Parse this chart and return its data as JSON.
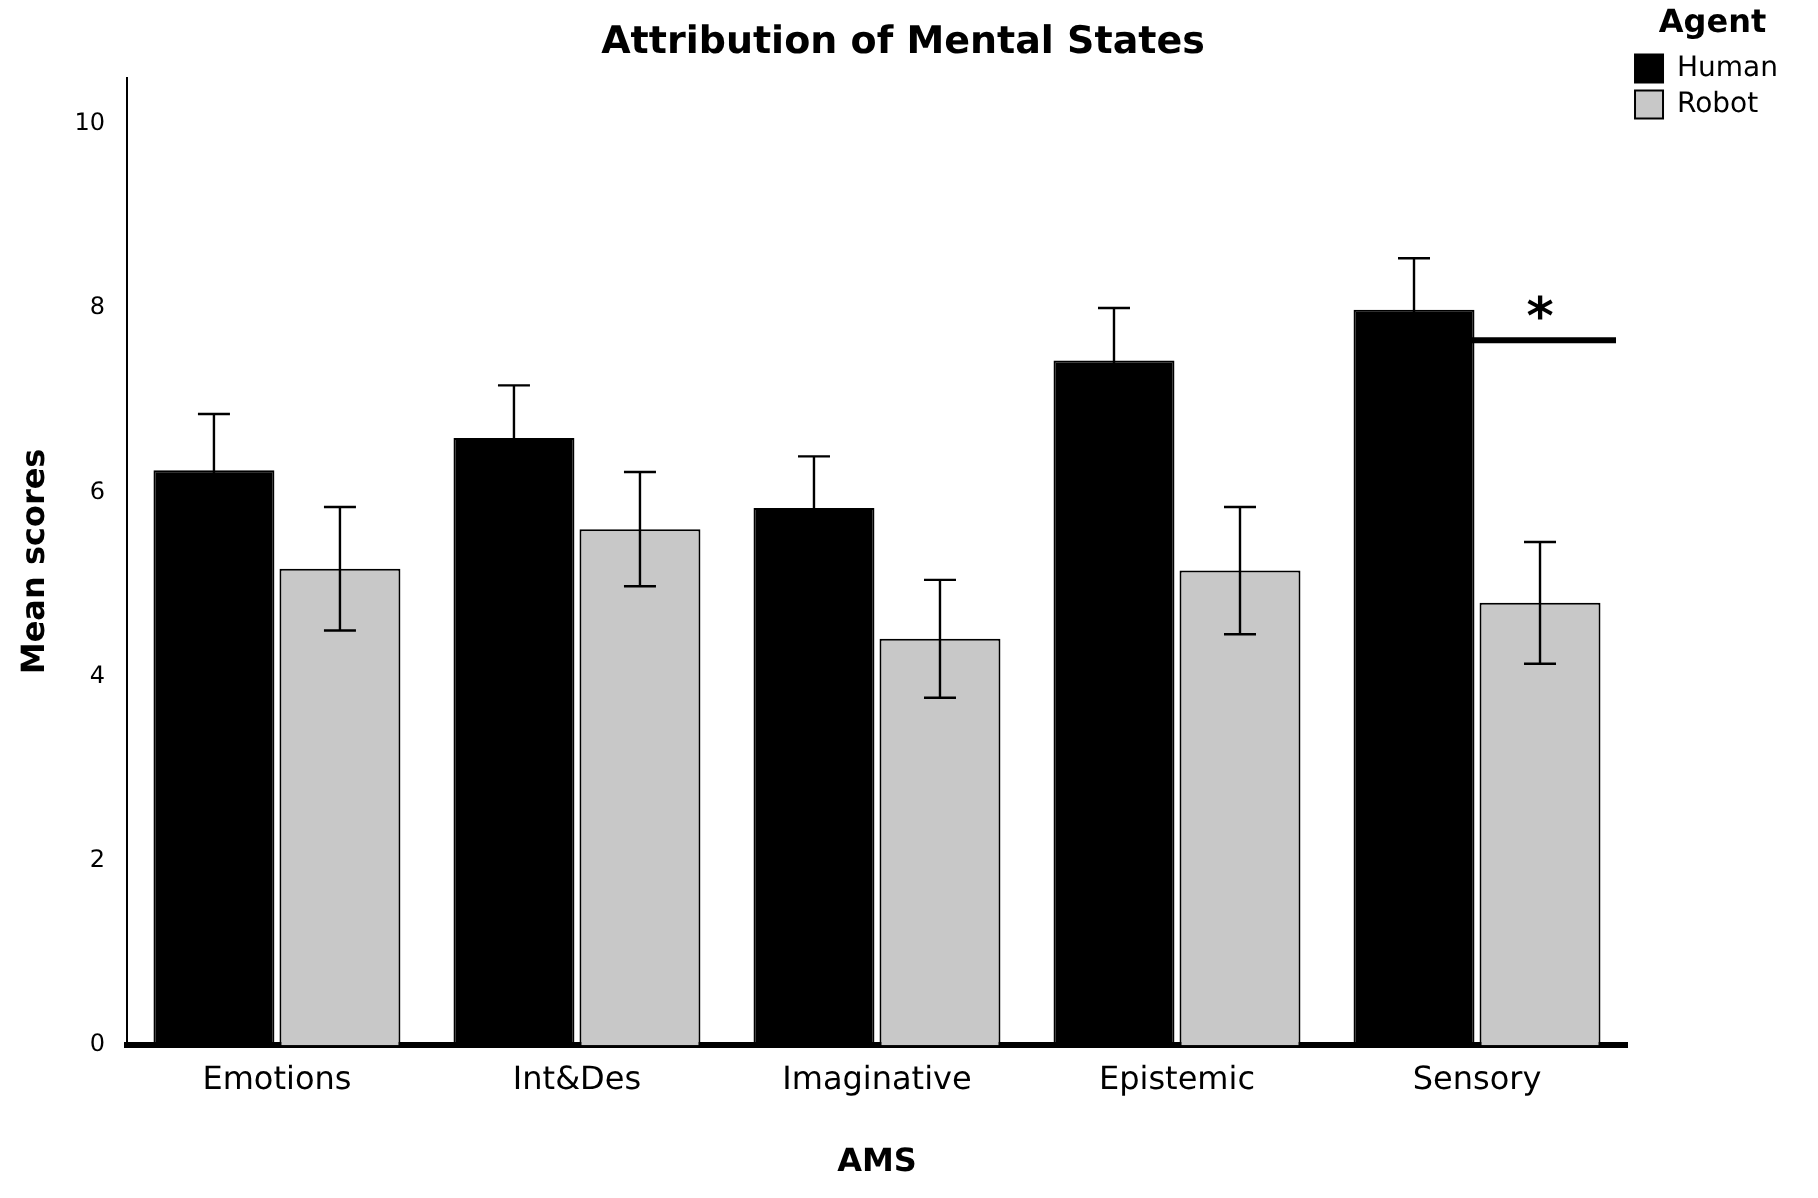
{
  "chart_data": {
    "type": "bar",
    "title": "Attribution of Mental States",
    "xlabel": "AMS",
    "ylabel": "Mean scores",
    "legend_title": "Agent",
    "legend": "top right",
    "categories": [
      "Emotions",
      "Int&Des",
      "Imaginative",
      "Epistemic",
      "Sensory"
    ],
    "series": [
      {
        "name": "Human",
        "color": "#000000",
        "values": [
          6.24,
          6.59,
          5.83,
          7.43,
          7.98
        ],
        "errors": [
          0.61,
          0.57,
          0.56,
          0.57,
          0.56
        ]
      },
      {
        "name": "Robot",
        "color": "#c8c8c8",
        "values": [
          5.17,
          5.6,
          4.41,
          5.15,
          4.8
        ],
        "errors": [
          0.67,
          0.62,
          0.64,
          0.69,
          0.66
        ]
      }
    ],
    "ylim": [
      0,
      10.5
    ],
    "yticks": [
      0,
      2,
      4,
      6,
      8,
      10
    ],
    "grid": false,
    "annotations": [
      {
        "text": "*",
        "x": "Sensory",
        "y": 7.65
      }
    ]
  }
}
